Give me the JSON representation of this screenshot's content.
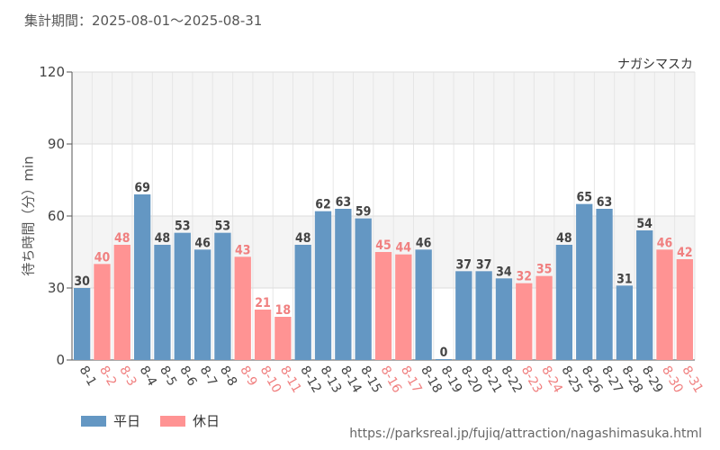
{
  "header": {
    "period": "集計期間：2025-08-01～2025-08-31",
    "attraction": "ナガシマスカ"
  },
  "legend": {
    "weekday": "平日",
    "holiday": "休日"
  },
  "source": "https://parksreal.jp/fujiq/attraction/nagashimasuka.html",
  "colors": {
    "weekday": "#6497c3",
    "holiday": "#ff9393",
    "holiday_label": "#f08080",
    "weekday_label": "#444444",
    "band": "#f4f4f4",
    "grid": "#e6e6e6"
  },
  "chart_data": {
    "type": "bar",
    "ylabel": "待ち時間（分）min",
    "ylim": [
      0,
      120
    ],
    "yticks": [
      0,
      30,
      60,
      90,
      120
    ],
    "categories": [
      "8-1",
      "8-2",
      "8-3",
      "8-4",
      "8-5",
      "8-6",
      "8-7",
      "8-8",
      "8-9",
      "8-10",
      "8-11",
      "8-12",
      "8-13",
      "8-14",
      "8-15",
      "8-16",
      "8-17",
      "8-18",
      "8-19",
      "8-20",
      "8-21",
      "8-22",
      "8-23",
      "8-24",
      "8-25",
      "8-26",
      "8-27",
      "8-28",
      "8-29",
      "8-30",
      "8-31"
    ],
    "values": [
      30,
      40,
      48,
      69,
      48,
      53,
      46,
      53,
      43,
      21,
      18,
      48,
      62,
      63,
      59,
      45,
      44,
      46,
      0,
      37,
      37,
      34,
      32,
      35,
      48,
      65,
      63,
      31,
      54,
      46,
      42
    ],
    "day_type": [
      "weekday",
      "holiday",
      "holiday",
      "weekday",
      "weekday",
      "weekday",
      "weekday",
      "weekday",
      "holiday",
      "holiday",
      "holiday",
      "weekday",
      "weekday",
      "weekday",
      "weekday",
      "holiday",
      "holiday",
      "weekday",
      "weekday",
      "weekday",
      "weekday",
      "weekday",
      "holiday",
      "holiday",
      "weekday",
      "weekday",
      "weekday",
      "weekday",
      "weekday",
      "holiday",
      "holiday"
    ],
    "grid": true
  }
}
